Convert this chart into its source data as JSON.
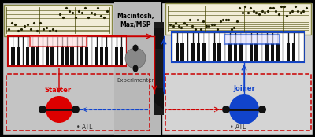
{
  "fig_width": 4.0,
  "fig_height": 1.74,
  "dpi": 100,
  "starter_label": "Starter",
  "starter_color": "#dd0000",
  "joiner_label": "Joiner",
  "joiner_color": "#1144cc",
  "experimenter_label": "Experimenter",
  "macintosh_label": "Macintosh,\nMax/MSP",
  "atl_label": "• ATL",
  "score_bg": "#f2edd8",
  "left_bg": "#c4c4c4",
  "right_bg": "#d4d4d4",
  "center_bg": "#b8b8b8"
}
